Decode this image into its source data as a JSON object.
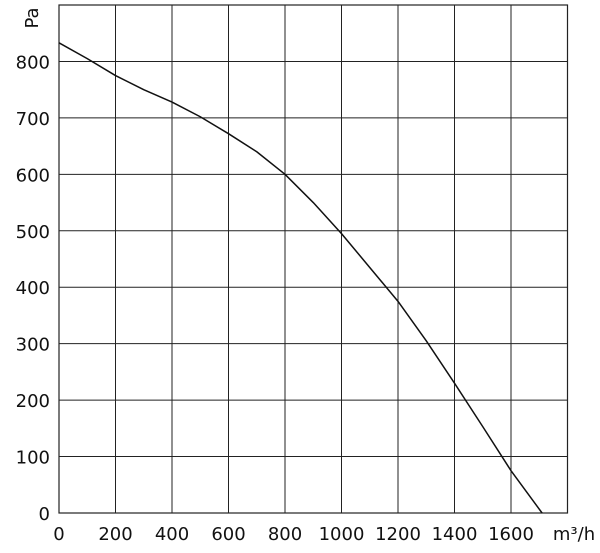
{
  "chart_data": {
    "type": "line",
    "x_label": "m³/h",
    "y_label": "Pa",
    "x": [
      0,
      100,
      200,
      300,
      400,
      500,
      600,
      700,
      800,
      900,
      1000,
      1100,
      1200,
      1300,
      1400,
      1500,
      1600,
      1710
    ],
    "series": [
      {
        "color": "#111111",
        "values": [
          833,
          805,
          775,
          750,
          728,
          702,
          672,
          640,
          600,
          550,
          495,
          435,
          375,
          305,
          230,
          153,
          75,
          0
        ]
      }
    ],
    "xlim": [
      0,
      1800
    ],
    "ylim": [
      0,
      900
    ],
    "xticks": [
      0,
      200,
      400,
      600,
      800,
      1000,
      1200,
      1400,
      1600
    ],
    "yticks": [
      0,
      100,
      200,
      300,
      400,
      500,
      600,
      700,
      800
    ],
    "grid": true
  }
}
